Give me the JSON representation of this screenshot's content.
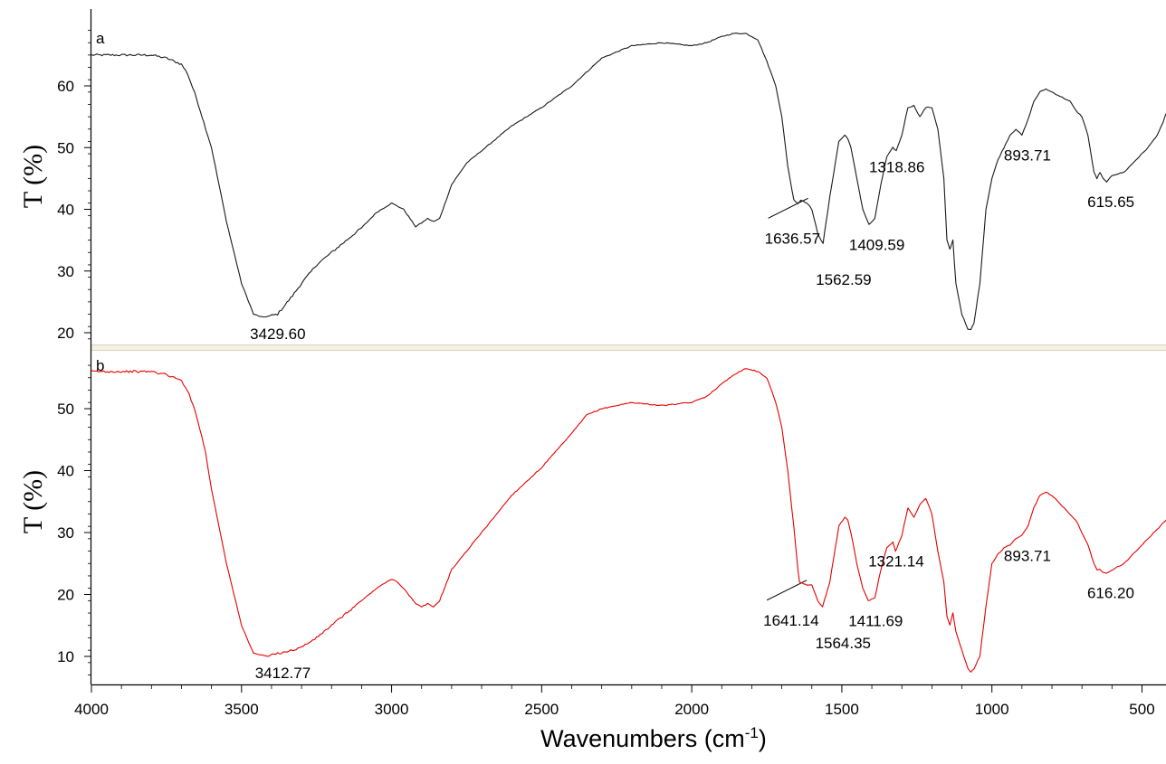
{
  "chart_data": {
    "type": "line",
    "xlabel": "Wavenumbers (cm",
    "xlabel_sup": "-1",
    "xlabel_close": ")",
    "x_range": [
      4000,
      420
    ],
    "x_reversed": true,
    "x_ticks": [
      4000,
      3500,
      3000,
      2500,
      2000,
      1500,
      1000,
      500
    ],
    "grid": false,
    "panels": [
      {
        "label": "a",
        "ylabel": "T (%)",
        "ylim": [
          17,
          70
        ],
        "y_ticks": [
          20,
          30,
          40,
          50,
          60
        ],
        "color": "#1a1a1a",
        "series": {
          "x": [
            4000,
            3900,
            3800,
            3750,
            3700,
            3680,
            3650,
            3600,
            3550,
            3500,
            3460,
            3429.6,
            3380,
            3330,
            3300,
            3250,
            3200,
            3100,
            3050,
            3000,
            2980,
            2960,
            2920,
            2900,
            2880,
            2860,
            2840,
            2800,
            2750,
            2700,
            2600,
            2500,
            2400,
            2300,
            2200,
            2100,
            2000,
            1950,
            1900,
            1860,
            1820,
            1780,
            1750,
            1720,
            1700,
            1680,
            1660,
            1645,
            1636.57,
            1615,
            1600,
            1580,
            1562.59,
            1540,
            1510,
            1490,
            1480,
            1470,
            1450,
            1430,
            1409.59,
            1390,
            1370,
            1350,
            1330,
            1318.86,
            1300,
            1280,
            1260,
            1240,
            1220,
            1200,
            1180,
            1160,
            1150,
            1140,
            1130,
            1120,
            1100,
            1080,
            1070,
            1060,
            1040,
            1020,
            1000,
            980,
            960,
            940,
            920,
            900,
            880,
            860,
            840,
            820,
            800,
            780,
            760,
            740,
            720,
            700,
            680,
            660,
            650,
            640,
            630,
            620,
            615.65,
            600,
            560,
            520,
            480,
            450,
            430,
            420
          ],
          "y": [
            65,
            65,
            65,
            64.5,
            63.5,
            62,
            58,
            50,
            38,
            28,
            23,
            22.5,
            23,
            26,
            28,
            31,
            33,
            37,
            39.5,
            41,
            40.5,
            40,
            37.2,
            37.8,
            38.5,
            38,
            38.5,
            44,
            47.5,
            49.5,
            53.5,
            56.5,
            60,
            64.5,
            66.5,
            67,
            66.5,
            67,
            68,
            68.5,
            68.5,
            67.5,
            64,
            60,
            55,
            47,
            41.5,
            41,
            41.5,
            41,
            40,
            36,
            34.5,
            42,
            51,
            52,
            51.5,
            50,
            45,
            40,
            37.5,
            38.5,
            44,
            48.5,
            50,
            49.5,
            52,
            56.5,
            56.8,
            55,
            56.5,
            56.5,
            53,
            45,
            35,
            33.5,
            35,
            28,
            23,
            20.5,
            20.5,
            21.5,
            28,
            40,
            45,
            48,
            50,
            52,
            53,
            52,
            54.5,
            57.5,
            59,
            59.5,
            59,
            58.5,
            58,
            57.5,
            56,
            55,
            52,
            46,
            45,
            46,
            45,
            44.5,
            44.5,
            45.5,
            46,
            48,
            50,
            52,
            54,
            55.5
          ]
        },
        "annotations": [
          {
            "text": "3429.60",
            "x": 3429.6,
            "y": 22.5
          },
          {
            "text": "1636.57",
            "x": 1636.57,
            "y": 41.5
          },
          {
            "text": "1562.59",
            "x": 1562.59,
            "y": 34.5
          },
          {
            "text": "1409.59",
            "x": 1409.59,
            "y": 37.5
          },
          {
            "text": "1318.86",
            "x": 1318.86,
            "y": 49.5
          },
          {
            "text": "893.71",
            "x": 893.71,
            "y": 52
          },
          {
            "text": "615.65",
            "x": 615.65,
            "y": 44.5
          }
        ]
      },
      {
        "label": "b",
        "ylabel": "T (%)",
        "ylim": [
          5,
          58
        ],
        "y_ticks": [
          10,
          20,
          30,
          40,
          50
        ],
        "color": "#e60000",
        "series": {
          "x": [
            4000,
            3900,
            3800,
            3750,
            3700,
            3680,
            3650,
            3620,
            3600,
            3550,
            3500,
            3460,
            3412.77,
            3380,
            3330,
            3300,
            3250,
            3200,
            3100,
            3050,
            3000,
            2980,
            2960,
            2920,
            2900,
            2880,
            2860,
            2840,
            2800,
            2750,
            2700,
            2600,
            2500,
            2400,
            2350,
            2300,
            2200,
            2100,
            2000,
            1950,
            1900,
            1860,
            1820,
            1780,
            1750,
            1720,
            1700,
            1680,
            1660,
            1645,
            1641.14,
            1615,
            1600,
            1580,
            1564.35,
            1540,
            1510,
            1490,
            1480,
            1470,
            1450,
            1430,
            1411.69,
            1390,
            1370,
            1350,
            1330,
            1321.14,
            1300,
            1280,
            1260,
            1240,
            1220,
            1200,
            1180,
            1160,
            1150,
            1140,
            1130,
            1120,
            1100,
            1080,
            1070,
            1060,
            1040,
            1020,
            1000,
            980,
            960,
            940,
            920,
            900,
            880,
            860,
            840,
            820,
            800,
            780,
            760,
            740,
            720,
            700,
            680,
            660,
            650,
            640,
            630,
            620,
            616.2,
            600,
            560,
            520,
            480,
            450,
            430,
            420
          ],
          "y": [
            56,
            56,
            56,
            55.5,
            54.5,
            53,
            49,
            43,
            37,
            25,
            15,
            10.5,
            10,
            10.5,
            11,
            11.5,
            13,
            15,
            19,
            21,
            22.5,
            22,
            21,
            18.5,
            18,
            18.5,
            18,
            19,
            24,
            27,
            30,
            36,
            40.5,
            46,
            49,
            50,
            51,
            50.5,
            51,
            52,
            54,
            55.5,
            56.5,
            56,
            55,
            51,
            47,
            40,
            31,
            23.5,
            22,
            21.5,
            21.5,
            19,
            18,
            22,
            31,
            32.5,
            32,
            30,
            25,
            21,
            19,
            19.5,
            24,
            27.5,
            28.5,
            27,
            29.5,
            34,
            32.5,
            34.5,
            35.5,
            33,
            27,
            22,
            16.5,
            15,
            17,
            14,
            11,
            8,
            7.5,
            8,
            10,
            18,
            25,
            26.5,
            27.5,
            28,
            29,
            29.5,
            31,
            34,
            36,
            36.5,
            36,
            35,
            34,
            33,
            32,
            30,
            28,
            25,
            24,
            24,
            23.5,
            23.5,
            23.5,
            24,
            25,
            27,
            29,
            30.5,
            31.5,
            32
          ]
        },
        "annotations": [
          {
            "text": "3412.77",
            "x": 3412.77,
            "y": 10
          },
          {
            "text": "1641.14",
            "x": 1641.14,
            "y": 22
          },
          {
            "text": "1564.35",
            "x": 1564.35,
            "y": 18
          },
          {
            "text": "1411.69",
            "x": 1411.69,
            "y": 19
          },
          {
            "text": "1321.14",
            "x": 1321.14,
            "y": 28
          },
          {
            "text": "893.71",
            "x": 893.71,
            "y": 29.5
          },
          {
            "text": "616.20",
            "x": 616.2,
            "y": 23.5
          }
        ]
      }
    ]
  }
}
